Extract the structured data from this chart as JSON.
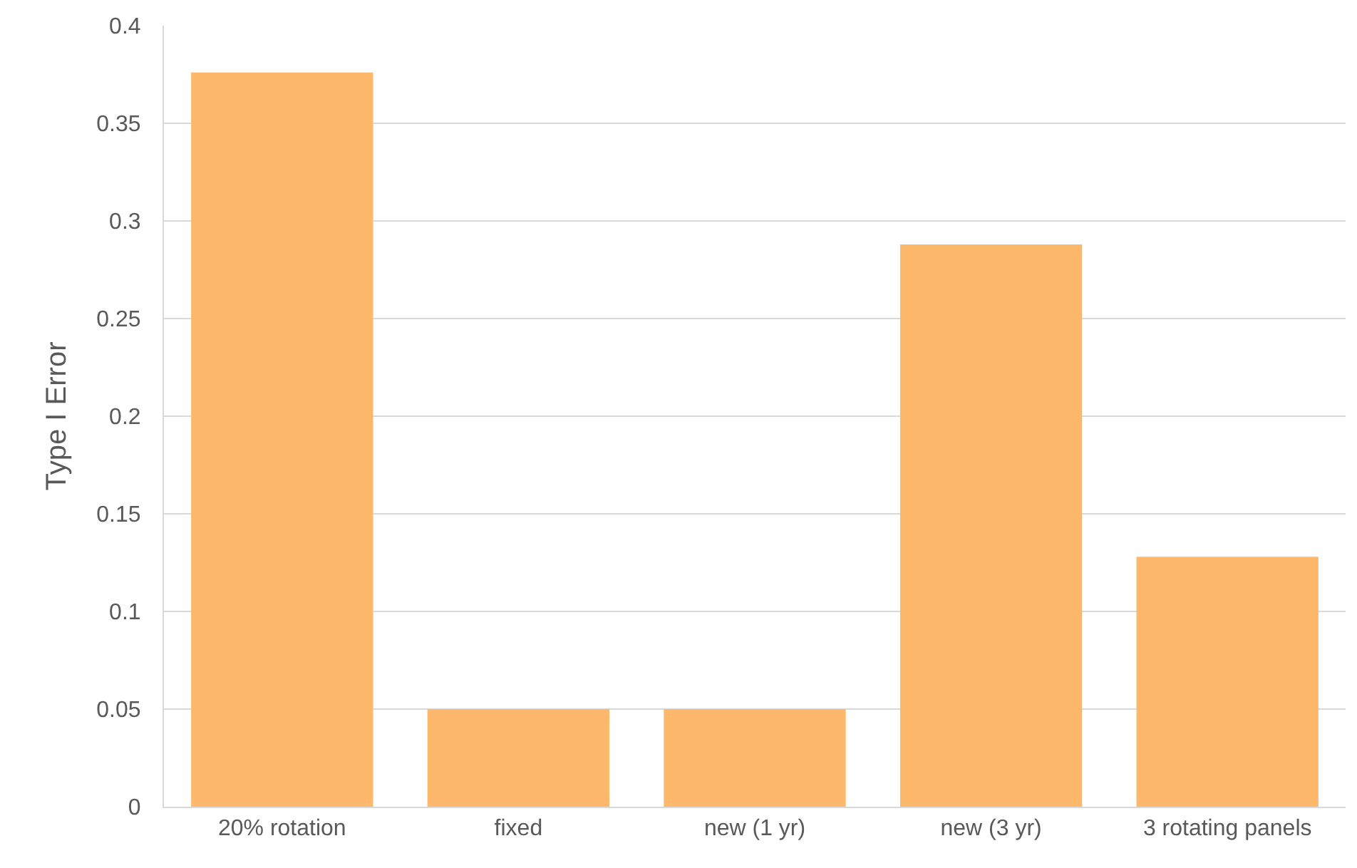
{
  "chart_data": {
    "type": "bar",
    "ylabel": "Type I Error",
    "categories": [
      "20% rotation",
      "fixed",
      "new (1 yr)",
      "new (3 yr)",
      "3 rotating panels"
    ],
    "values": [
      0.376,
      0.05,
      0.05,
      0.288,
      0.128
    ],
    "color": "#fdb86c",
    "ylim": [
      0,
      0.4
    ],
    "yticks": [
      0,
      0.05,
      0.1,
      0.15,
      0.2,
      0.25,
      0.3,
      0.35,
      0.4
    ],
    "grid": "y",
    "legend": false
  }
}
